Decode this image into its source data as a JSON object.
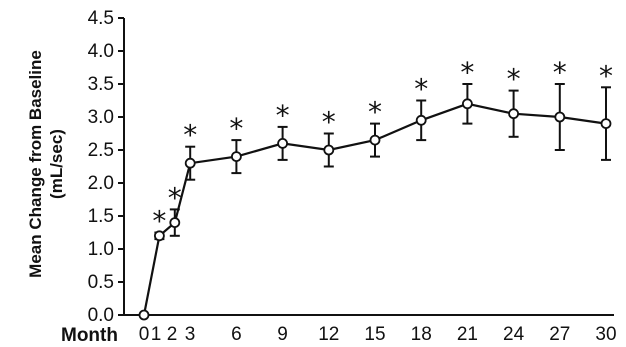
{
  "chart_data": {
    "type": "line",
    "xlabel": "Month",
    "ylabel_line1": "Mean Change from Baseline",
    "ylabel_line2": "(mL/sec)",
    "ylim": [
      0,
      4.5
    ],
    "y_ticks": [
      "0.0",
      "0.5",
      "1.0",
      "1.5",
      "2.0",
      "2.5",
      "3.0",
      "3.5",
      "4.0",
      "4.5"
    ],
    "x_ticks": [
      "0",
      "1",
      "2",
      "3",
      "6",
      "9",
      "12",
      "15",
      "18",
      "21",
      "24",
      "27",
      "30"
    ],
    "x": [
      0,
      1,
      2,
      3,
      6,
      9,
      12,
      15,
      18,
      21,
      24,
      27,
      30
    ],
    "y": [
      0.0,
      1.2,
      1.4,
      2.3,
      2.4,
      2.6,
      2.5,
      2.65,
      2.95,
      3.2,
      3.05,
      3.0,
      2.9
    ],
    "error": [
      0.0,
      0.05,
      0.2,
      0.25,
      0.25,
      0.25,
      0.25,
      0.25,
      0.3,
      0.3,
      0.35,
      0.5,
      0.55
    ],
    "significant": [
      false,
      true,
      true,
      true,
      true,
      true,
      true,
      true,
      true,
      true,
      true,
      true,
      true
    ],
    "significance_marker": "*",
    "marker": "open-circle",
    "grid": false,
    "colors": {
      "line": "#111111",
      "marker_fill": "#ffffff",
      "axis": "#111111"
    }
  }
}
